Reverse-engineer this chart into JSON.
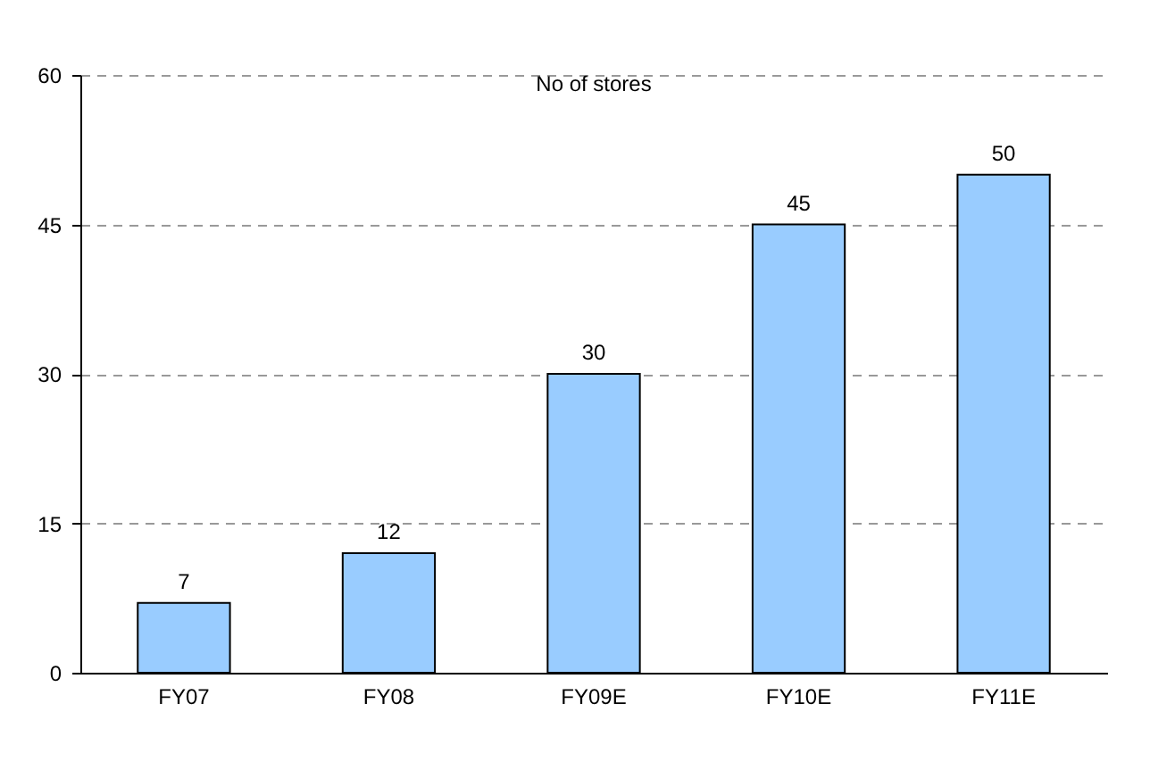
{
  "chart_data": {
    "type": "bar",
    "title": "No of stores",
    "categories": [
      "FY07",
      "FY08",
      "FY09E",
      "FY10E",
      "FY11E"
    ],
    "values": [
      7,
      12,
      30,
      45,
      50
    ],
    "color": "#99ccff",
    "ylim": [
      0,
      60
    ],
    "yticks": [
      0,
      15,
      30,
      45,
      60
    ],
    "grid": "y",
    "data_labels": true
  }
}
